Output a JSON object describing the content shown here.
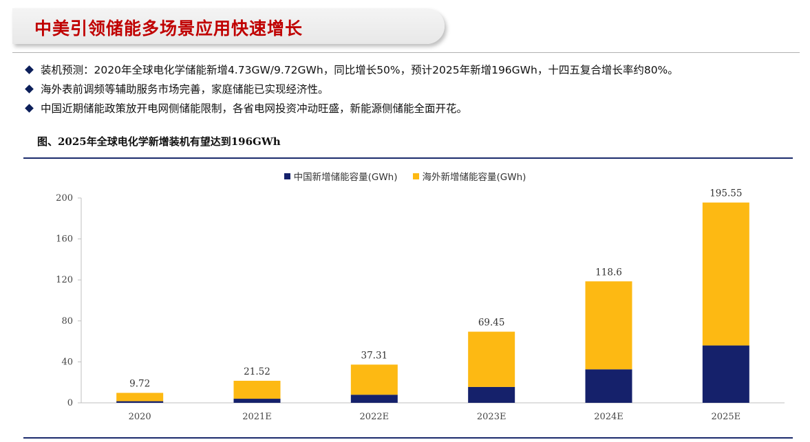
{
  "header": {
    "title": "中美引领储能多场景应用快速增长"
  },
  "bullets": [
    "装机预测：2020年全球电化学储能新增4.73GW/9.72GWh，同比增长50%，预计2025年新增196GWh，十四五复合增长率约80%。",
    "海外表前调频等辅助服务市场完善，家庭储能已实现经济性。",
    "中国近期储能政策放开电网侧储能限制，各省电网投资冲动旺盛，新能源侧储能全面开花。"
  ],
  "figure": {
    "title": "图、2025年全球电化学新增装机有望达到196GWh"
  },
  "colors": {
    "china": "#15216b",
    "overseas": "#fdb913",
    "title_red": "#c00000",
    "rule_blue": "#1a2a6c"
  },
  "chart_data": {
    "type": "bar",
    "stacked": true,
    "categories": [
      "2020",
      "2021E",
      "2022E",
      "2023E",
      "2024E",
      "2025E"
    ],
    "series": [
      {
        "name": "中国新增储能容量(GWh)",
        "values": [
          1.6,
          4.0,
          7.9,
          15.5,
          32.7,
          56.0
        ]
      },
      {
        "name": "海外新增储能容量(GWh)",
        "values": [
          8.12,
          17.52,
          29.41,
          53.95,
          85.9,
          139.55
        ]
      }
    ],
    "totals": [
      "9.72",
      "21.52",
      "37.31",
      "69.45",
      "118.6",
      "195.55"
    ],
    "ylim": [
      0,
      200
    ],
    "yticks": [
      0,
      40,
      80,
      120,
      160,
      200
    ],
    "legend_position": "top-center",
    "grid": false
  }
}
